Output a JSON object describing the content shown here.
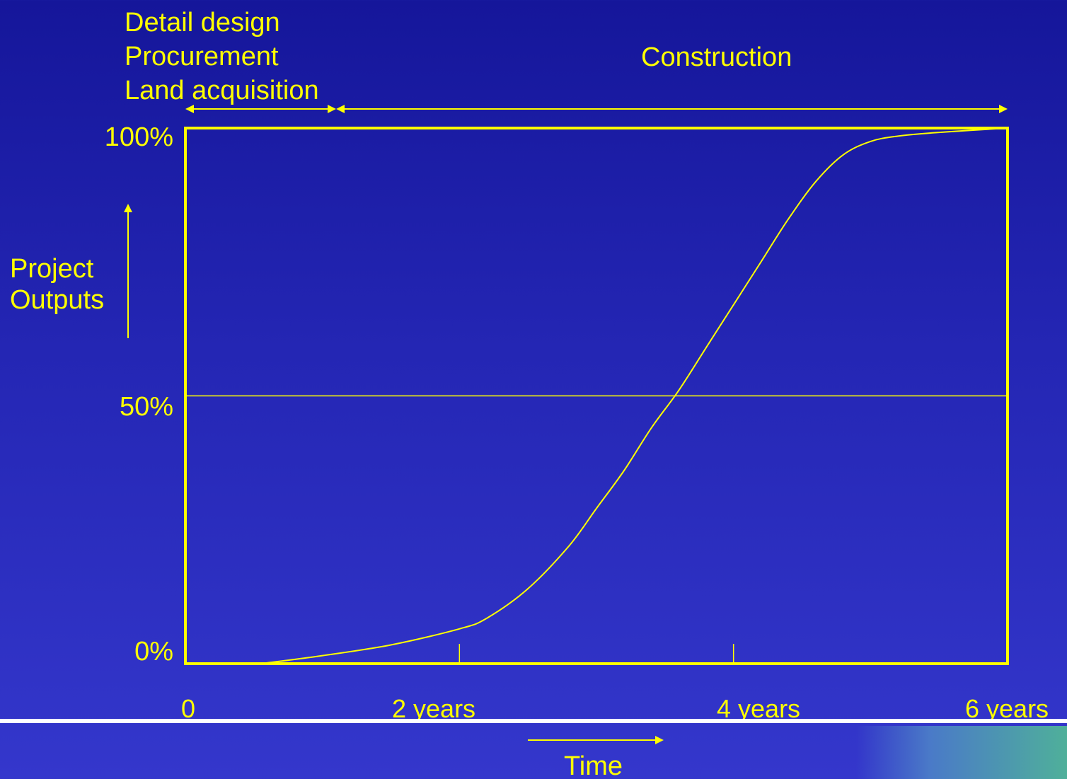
{
  "chart_data": {
    "type": "line",
    "title": "",
    "xlabel": "Time",
    "ylabel": "Project Outputs",
    "x_tick_labels": [
      "0",
      "2 years",
      "4 years",
      "6 years"
    ],
    "y_tick_labels": [
      "0%",
      "50%",
      "100%"
    ],
    "xlim": [
      0,
      6
    ],
    "ylim": [
      0,
      100
    ],
    "reference_line": 50,
    "phases": [
      {
        "label_lines": [
          "Detail design",
          "Procurement",
          "Land acquisition"
        ],
        "start": 0,
        "end": 1.1
      },
      {
        "label_lines": [
          "Construction"
        ],
        "start": 1.1,
        "end": 6
      }
    ],
    "series": [
      {
        "x": [
          0.55,
          1.0,
          1.5,
          2.0,
          2.2,
          2.5,
          2.8,
          3.0,
          3.2,
          3.4,
          3.6,
          3.8,
          4.0,
          4.2,
          4.4,
          4.6,
          4.8,
          5.0,
          5.2,
          5.5,
          6.0
        ],
        "y": [
          0,
          1.5,
          3.5,
          6.5,
          8.5,
          14,
          22,
          29,
          36,
          44,
          51,
          59,
          67,
          75,
          83,
          90,
          95,
          97.5,
          98.5,
          99.2,
          100
        ]
      }
    ],
    "colors": {
      "line": "#ffff00",
      "background_top": "#15169a",
      "background_bottom": "#3437cc"
    }
  }
}
